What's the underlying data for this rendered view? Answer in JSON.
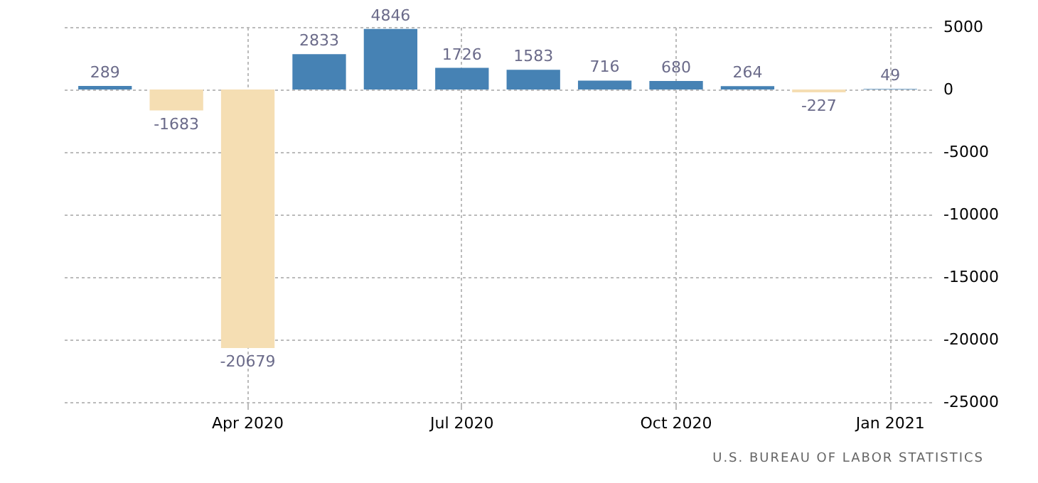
{
  "chart_data": {
    "type": "bar",
    "categories": [
      null,
      null,
      "Apr 2020",
      null,
      null,
      "Jul 2020",
      null,
      null,
      "Oct 2020",
      null,
      null,
      "Jan 2021"
    ],
    "values": [
      289,
      -1683,
      -20679,
      2833,
      4846,
      1726,
      1583,
      716,
      680,
      264,
      -227,
      49
    ],
    "colors": [
      "#4682b4",
      "#f5deb3",
      "#f5deb3",
      "#4682b4",
      "#4682b4",
      "#4682b4",
      "#4682b4",
      "#4682b4",
      "#4682b4",
      "#4682b4",
      "#f5deb3",
      "#4682b4"
    ],
    "ylim": [
      -25000,
      5000
    ],
    "yticks": [
      -25000,
      -20000,
      -15000,
      -10000,
      -5000,
      0,
      5000
    ],
    "grid": true,
    "data_labels": true,
    "annotations": [
      "U.S. BUREAU OF LABOR STATISTICS"
    ]
  }
}
